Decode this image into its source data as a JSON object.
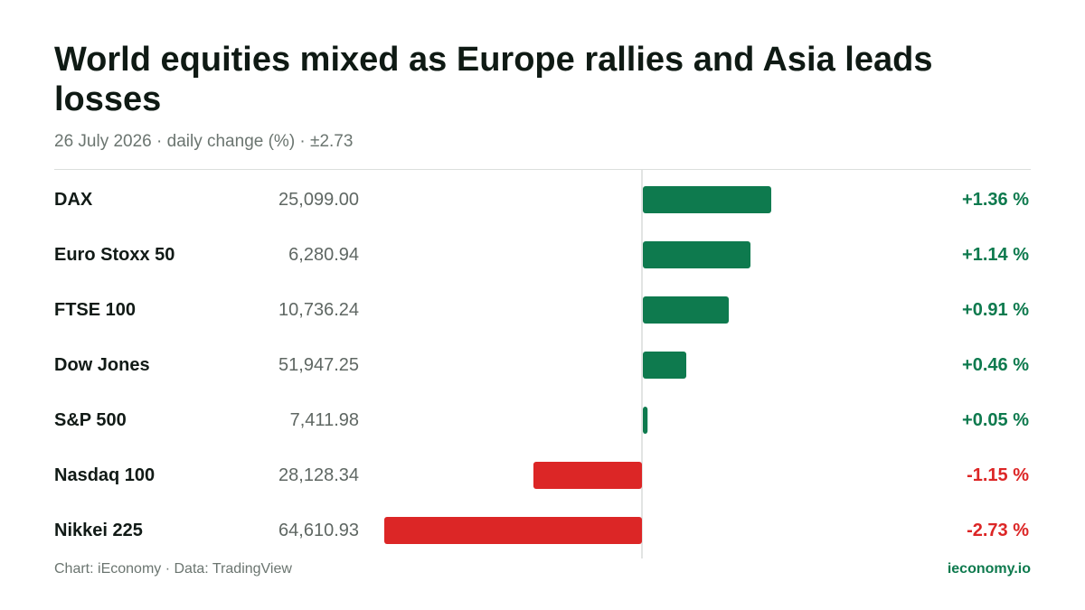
{
  "header": {
    "title": "World equities mixed as Europe rallies and Asia leads losses",
    "subtitle": "26 July 2026 · daily change (%) · ±2.73"
  },
  "footer": {
    "source": "Chart: iEconomy · Data: TradingView",
    "brand": "ieconomy.io"
  },
  "colors": {
    "positive": "#0e7a4e",
    "negative": "#dc2626",
    "axis": "#d9dcda",
    "label": "#111a16",
    "value": "#5f6763"
  },
  "chart_data": {
    "type": "bar",
    "orientation": "horizontal",
    "title": "World equities mixed as Europe rallies and Asia leads losses",
    "subtitle": "26 July 2026 · daily change (%) · ±2.73",
    "xlim": [
      -2.73,
      2.73
    ],
    "grid": false,
    "unit": "%",
    "categories": [
      "DAX",
      "Euro Stoxx 50",
      "FTSE 100",
      "Dow Jones",
      "S&P 500",
      "Nasdaq 100",
      "Nikkei 225"
    ],
    "index_levels": [
      "25,099.00",
      "6,280.94",
      "10,736.24",
      "51,947.25",
      "7,411.98",
      "28,128.34",
      "64,610.93"
    ],
    "values": [
      1.36,
      1.14,
      0.91,
      0.46,
      0.05,
      -1.15,
      -2.73
    ],
    "value_labels": [
      "+1.36 %",
      "+1.14 %",
      "+0.91 %",
      "+0.46 %",
      "+0.05 %",
      "-1.15 %",
      "-2.73 %"
    ]
  }
}
